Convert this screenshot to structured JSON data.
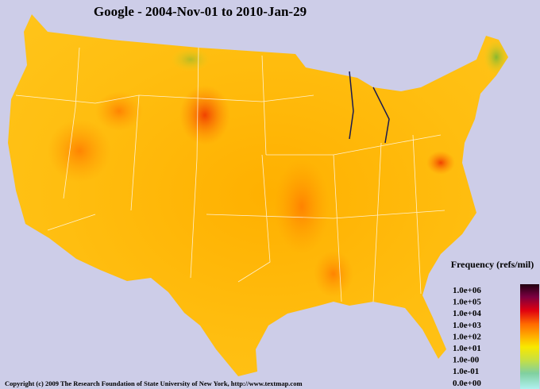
{
  "header": {
    "title": "Google - 2004-Nov-01 to 2010-Jan-29"
  },
  "legend": {
    "title": "Frequency (refs/mil)",
    "labels": [
      "1.0e+06",
      "1.0e+05",
      "1.0e+04",
      "1.0e+03",
      "1.0e+02",
      "1.0e+01",
      "1.0e-00",
      "1.0e-01",
      "0.0e+00"
    ]
  },
  "footer": {
    "copyright": "Copyright (c) 2009 The Research Foundation of State University of New York, http://www.textmap.com"
  }
}
